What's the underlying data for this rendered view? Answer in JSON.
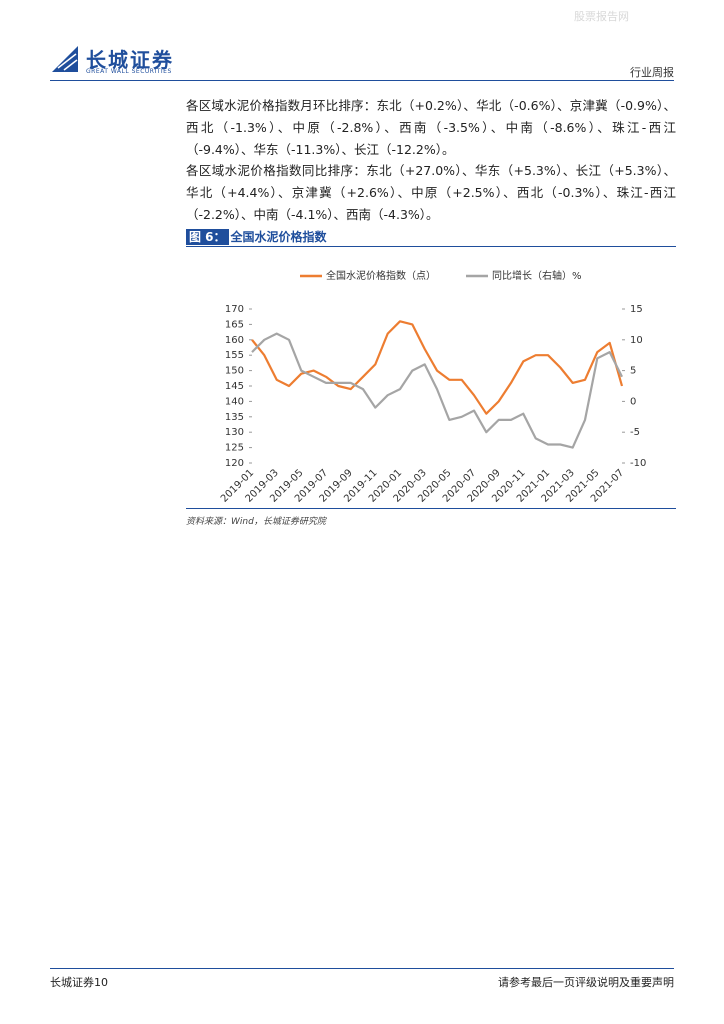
{
  "header": {
    "watermark": "股票报告网",
    "logo_cn": "长城证券",
    "logo_en": "GREAT WALL SECURITIES",
    "report_type": "行业周报"
  },
  "paragraphs": [
    "各区域水泥价格指数月环比排序：东北（+0.2%）、华北（-0.6%）、京津冀（-0.9%）、西北（-1.3%）、中原（-2.8%）、西南（-3.5%）、中南（-8.6%）、珠江-西江（-9.4%）、华东（-11.3%）、长江（-12.2%）。",
    "各区域水泥价格指数同比排序：东北（+27.0%）、华东（+5.3%）、长江（+5.3%）、华北（+4.4%）、京津冀（+2.6%）、中原（+2.5%）、西北（-0.3%）、珠江-西江（-2.2%）、中南（-4.1%）、西南（-4.3%）。"
  ],
  "figure": {
    "label": "图 6：",
    "title": "全国水泥价格指数",
    "source": "资料来源：Wind，长城证券研究院"
  },
  "chart_data": {
    "type": "line",
    "categories": [
      "2019-01",
      null,
      "2019-03",
      null,
      "2019-05",
      null,
      "2019-07",
      null,
      "2019-09",
      null,
      "2019-11",
      null,
      "2020-01",
      null,
      "2020-03",
      null,
      "2020-05",
      null,
      "2020-07",
      null,
      "2020-09",
      null,
      "2020-11",
      null,
      "2021-01",
      null,
      "2021-03",
      null,
      "2021-05",
      null,
      "2021-07"
    ],
    "series": [
      {
        "name": "全国水泥价格指数（点）",
        "color": "#ed7d31",
        "values": [
          160,
          155,
          147,
          145,
          149,
          150,
          148,
          145,
          144,
          148,
          152,
          162,
          166,
          165,
          157,
          150,
          147,
          147,
          142,
          136,
          140,
          146,
          153,
          155,
          155,
          151,
          146,
          147,
          156,
          159,
          145
        ]
      },
      {
        "name": "同比增长（右轴）%",
        "color": "#a5a5a5",
        "axis": "y2",
        "values": [
          8,
          10,
          11,
          10,
          5,
          4,
          3,
          3,
          3,
          2,
          -1,
          1,
          2,
          5,
          6,
          2,
          -3,
          -2.5,
          -1.5,
          -5,
          -3,
          -3,
          -2,
          -6,
          -7,
          -7,
          -7.5,
          -3,
          7,
          8,
          4
        ]
      }
    ],
    "ylim": [
      120,
      170
    ],
    "yticks": [
      120,
      125,
      130,
      135,
      140,
      145,
      150,
      155,
      160,
      165,
      170
    ],
    "y2lim": [
      -10,
      15
    ],
    "y2ticks": [
      -10,
      -5,
      0,
      5,
      10,
      15
    ],
    "grid": false,
    "legend": "top"
  },
  "footer": {
    "left": "长城证券10",
    "right": "请参考最后一页评级说明及重要声明"
  }
}
